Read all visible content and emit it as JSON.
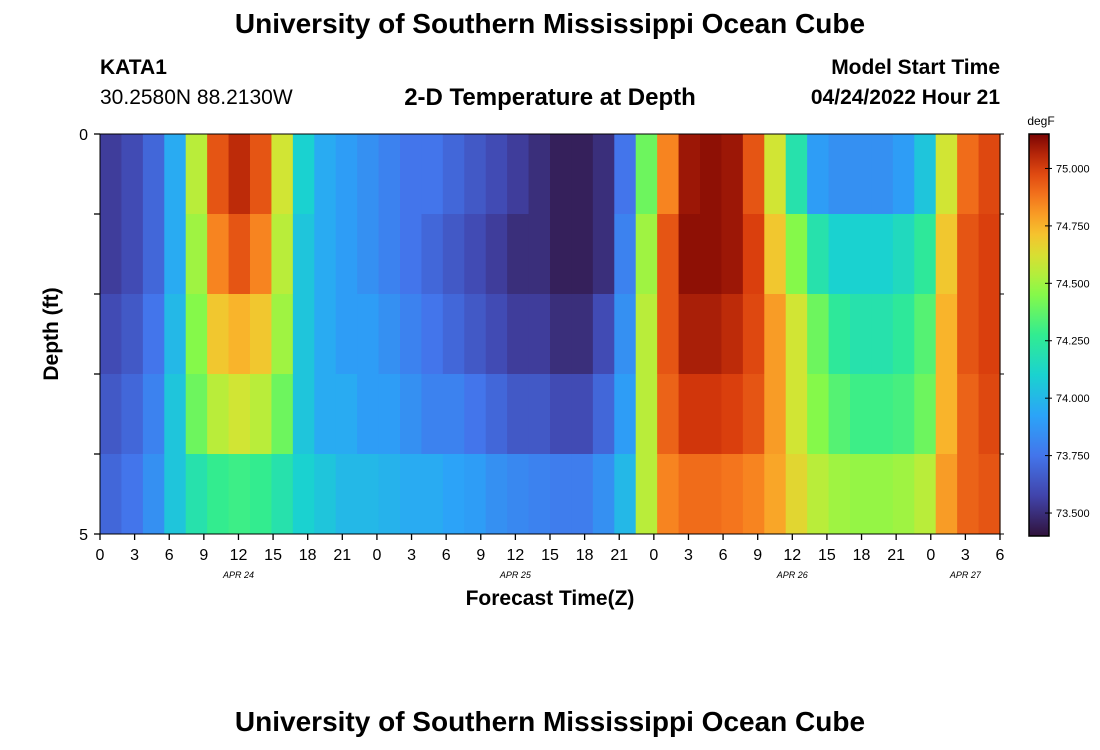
{
  "header": {
    "title": "University of Southern Mississippi Ocean Cube",
    "station": "KATA1",
    "latlon": "30.2580N  88.2130W",
    "plot_title": "2-D Temperature at Depth",
    "start_label": "Model Start Time",
    "start_time": "04/24/2022 Hour 21"
  },
  "footer": {
    "title": "University of Southern Mississippi Ocean Cube"
  },
  "chart_data": {
    "type": "heatmap",
    "title": "2-D Temperature at Depth",
    "xlabel": "Forecast Time(Z)",
    "ylabel": "Depth (ft)",
    "units": "degF",
    "x_hours": [
      0,
      3,
      6,
      9,
      12,
      15,
      18,
      21,
      24,
      27,
      30,
      33,
      36,
      39,
      42,
      45,
      48,
      51,
      54,
      57,
      60,
      63,
      66,
      69,
      72,
      75,
      78
    ],
    "x_tick_labels": [
      "0",
      "3",
      "6",
      "9",
      "12",
      "15",
      "18",
      "21",
      "0",
      "3",
      "6",
      "9",
      "12",
      "15",
      "18",
      "21",
      "0",
      "3",
      "6",
      "9",
      "12",
      "15",
      "18",
      "21",
      "0",
      "3",
      "6"
    ],
    "date_labels": [
      {
        "hour": 12,
        "label": "APR 24"
      },
      {
        "hour": 36,
        "label": "APR 25"
      },
      {
        "hour": 60,
        "label": "APR 26"
      },
      {
        "hour": 75,
        "label": "APR 27"
      }
    ],
    "y_tick_labels": [
      {
        "depth": 0,
        "label": "0"
      },
      {
        "depth": 5,
        "label": "5"
      }
    ],
    "depth_range": [
      0,
      5
    ],
    "x_range": [
      0,
      78
    ],
    "depth_levels": 5,
    "color_range": [
      73.4,
      75.15
    ],
    "colorbar_ticks": [
      73.5,
      73.75,
      74.0,
      74.25,
      74.5,
      74.75,
      75.0
    ],
    "colorbar_labels": [
      "73.500",
      "73.750",
      "74.000",
      "74.250",
      "74.500",
      "74.750",
      "75.000"
    ],
    "temperature_rows": [
      [
        73.55,
        73.6,
        73.7,
        73.95,
        74.55,
        74.95,
        75.05,
        74.95,
        74.6,
        74.1,
        73.95,
        73.9,
        73.85,
        73.8,
        73.75,
        73.75,
        73.7,
        73.65,
        73.6,
        73.55,
        73.5,
        73.45,
        73.45,
        73.5,
        73.75,
        74.4,
        74.85,
        75.1,
        75.12,
        75.1,
        74.95,
        74.6,
        74.2,
        73.9,
        73.85,
        73.85,
        73.85,
        73.9,
        74.05,
        74.6,
        74.9,
        74.98
      ],
      [
        73.55,
        73.6,
        73.7,
        73.95,
        74.5,
        74.85,
        74.95,
        74.85,
        74.55,
        74.05,
        73.95,
        73.9,
        73.85,
        73.8,
        73.75,
        73.7,
        73.65,
        73.6,
        73.55,
        73.5,
        73.5,
        73.45,
        73.45,
        73.5,
        73.8,
        74.5,
        74.95,
        75.12,
        75.12,
        75.1,
        75.0,
        74.7,
        74.45,
        74.2,
        74.1,
        74.1,
        74.1,
        74.15,
        74.25,
        74.7,
        74.95,
        75.0
      ],
      [
        73.6,
        73.65,
        73.75,
        74.0,
        74.45,
        74.7,
        74.75,
        74.7,
        74.5,
        74.05,
        73.95,
        73.9,
        73.9,
        73.85,
        73.8,
        73.75,
        73.7,
        73.65,
        73.6,
        73.55,
        73.55,
        73.5,
        73.5,
        73.6,
        73.85,
        74.55,
        74.95,
        75.08,
        75.08,
        75.05,
        74.98,
        74.8,
        74.6,
        74.4,
        74.25,
        74.2,
        74.2,
        74.25,
        74.35,
        74.75,
        74.95,
        75.0
      ],
      [
        73.65,
        73.7,
        73.8,
        74.05,
        74.4,
        74.55,
        74.6,
        74.55,
        74.4,
        74.05,
        73.95,
        73.95,
        73.9,
        73.9,
        73.85,
        73.8,
        73.8,
        73.75,
        73.7,
        73.65,
        73.65,
        73.6,
        73.6,
        73.7,
        73.9,
        74.55,
        74.92,
        75.02,
        75.02,
        75.0,
        74.95,
        74.8,
        74.6,
        74.45,
        74.35,
        74.3,
        74.3,
        74.32,
        74.4,
        74.75,
        74.92,
        74.98
      ],
      [
        73.7,
        73.75,
        73.85,
        74.05,
        74.2,
        74.28,
        74.3,
        74.28,
        74.2,
        74.1,
        74.05,
        74.0,
        74.0,
        73.98,
        73.95,
        73.95,
        73.92,
        73.9,
        73.85,
        73.82,
        73.8,
        73.78,
        73.78,
        73.85,
        74.0,
        74.55,
        74.85,
        74.9,
        74.9,
        74.88,
        74.85,
        74.78,
        74.65,
        74.55,
        74.5,
        74.48,
        74.48,
        74.5,
        74.55,
        74.8,
        74.92,
        74.95
      ]
    ]
  }
}
